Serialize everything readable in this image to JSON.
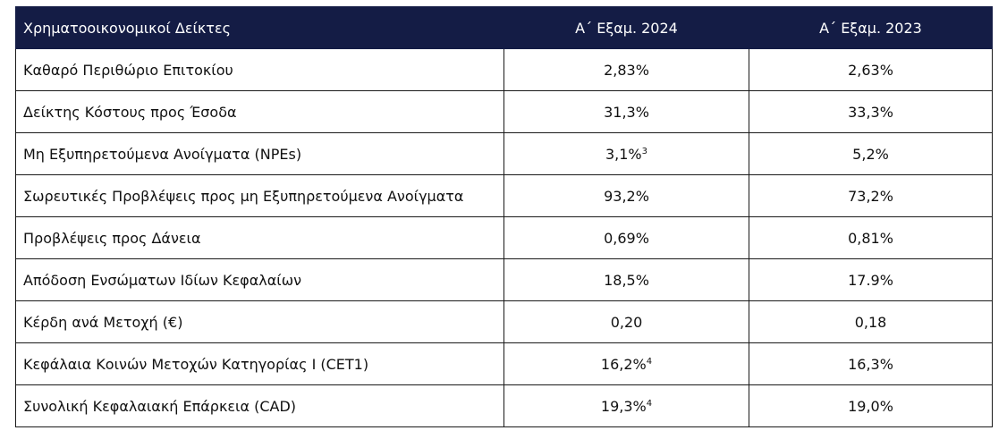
{
  "table": {
    "headers": [
      "Χρηματοοικονομικοί Δείκτες",
      "Α΄ Εξαμ. 2024",
      "Α΄ Εξαμ. 2023"
    ],
    "rows": [
      {
        "label": "Καθαρό Περιθώριο Επιτοκίου",
        "v2024": "2,83%",
        "v2024_note": "",
        "v2023": "2,63%"
      },
      {
        "label": "Δείκτης Κόστους προς Έσοδα",
        "v2024": "31,3%",
        "v2024_note": "",
        "v2023": "33,3%"
      },
      {
        "label": "Μη Εξυπηρετούμενα Ανοίγματα (NPEs)",
        "v2024": "3,1%",
        "v2024_note": "3",
        "v2023": "5,2%"
      },
      {
        "label": "Σωρευτικές Προβλέψεις προς μη Εξυπηρετούμενα Ανοίγματα",
        "v2024": "93,2%",
        "v2024_note": "",
        "v2023": "73,2%"
      },
      {
        "label": "Προβλέψεις προς Δάνεια",
        "v2024": "0,69%",
        "v2024_note": "",
        "v2023": "0,81%"
      },
      {
        "label": "Απόδοση Ενσώματων Ιδίων Κεφαλαίων",
        "v2024": "18,5%",
        "v2024_note": "",
        "v2023": "17.9%"
      },
      {
        "label": "Κέρδη ανά Μετοχή (€)",
        "v2024": "0,20",
        "v2024_note": "",
        "v2023": "0,18"
      },
      {
        "label": "Κεφάλαια Κοινών Μετοχών Κατηγορίας Ι (CET1)",
        "v2024": "16,2%",
        "v2024_note": "4",
        "v2023": "16,3%"
      },
      {
        "label": "Συνολική Κεφαλαιακή Επάρκεια (CAD)",
        "v2024": "19,3%",
        "v2024_note": "4",
        "v2023": "19,0%"
      }
    ]
  }
}
